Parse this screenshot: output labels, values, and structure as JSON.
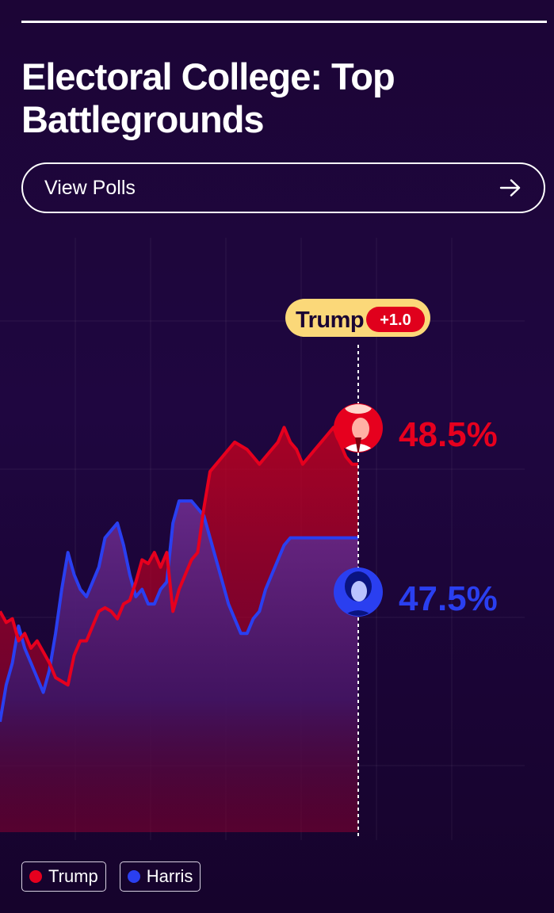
{
  "title": "Electoral College: Top Battlegrounds",
  "view_polls": {
    "label": "View Polls",
    "icon": "arrow-right-icon"
  },
  "leader_badge": {
    "name": "Trump",
    "margin": "+1.0"
  },
  "colors": {
    "trump": "#e6001e",
    "harris": "#2a3ff0",
    "badge_bg": "#fbd879",
    "background": "#1e0540"
  },
  "chart_data": {
    "type": "line",
    "series": [
      {
        "name": "Trump",
        "final_label": "48.5%",
        "icon": "trump-avatar-icon",
        "values": [
          46.5,
          46.35,
          46.4,
          46.1,
          46.2,
          46.0,
          46.1,
          45.95,
          45.8,
          45.6,
          45.55,
          45.5,
          45.9,
          46.1,
          46.1,
          46.3,
          46.5,
          46.55,
          46.5,
          46.4,
          46.6,
          46.65,
          46.9,
          47.2,
          47.15,
          47.3,
          47.1,
          47.3,
          46.5,
          46.8,
          47.0,
          47.2,
          47.3,
          47.9,
          48.4,
          48.5,
          48.6,
          48.7,
          48.8,
          48.75,
          48.7,
          48.6,
          48.5,
          48.6,
          48.7,
          48.8,
          49.0,
          48.8,
          48.7,
          48.5,
          48.6,
          48.7,
          48.8,
          48.9,
          49.0,
          48.8,
          48.6,
          48.5,
          48.5
        ]
      },
      {
        "name": "Harris",
        "final_label": "47.5%",
        "icon": "harris-avatar-icon",
        "values": [
          45.0,
          45.5,
          45.8,
          46.3,
          46.0,
          45.8,
          45.6,
          45.4,
          45.7,
          46.2,
          46.8,
          47.3,
          47.0,
          46.8,
          46.7,
          46.9,
          47.1,
          47.5,
          47.6,
          47.7,
          47.4,
          47.0,
          46.7,
          46.8,
          46.6,
          46.6,
          46.8,
          46.9,
          47.7,
          48.0,
          48.0,
          48.0,
          47.9,
          47.8,
          47.5,
          47.2,
          46.9,
          46.6,
          46.4,
          46.2,
          46.2,
          46.4,
          46.5,
          46.8,
          47.0,
          47.2,
          47.4,
          47.5,
          47.5,
          47.5,
          47.5,
          47.5,
          47.5,
          47.5,
          47.5,
          47.5,
          47.5,
          47.5,
          47.5
        ]
      }
    ],
    "ylim": [
      43.5,
      50.5
    ],
    "grid": true,
    "legend": "bottom-left"
  },
  "legend": [
    {
      "label": "Trump",
      "color": "#e6001e"
    },
    {
      "label": "Harris",
      "color": "#2a3ff0"
    }
  ]
}
